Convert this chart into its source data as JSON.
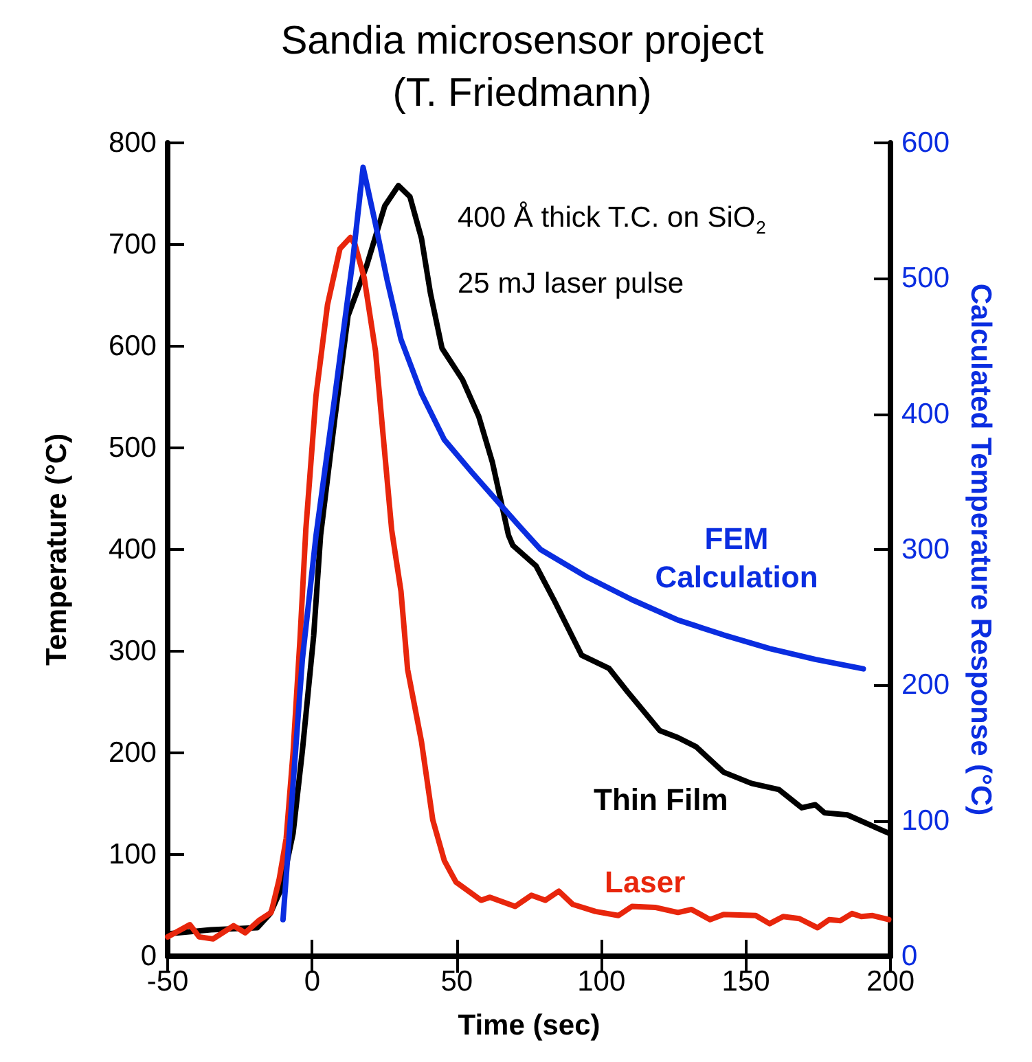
{
  "chart_data": {
    "type": "line",
    "title": "Sandia microsensor project\n(T. Friedmann)",
    "xlabel": "Time (sec)",
    "ylabel": "Temperature (°C)",
    "y2label": "Calculated Temperature Response (°C)",
    "annotations": [
      "400 Å thick T.C. on SiO$_{2}$",
      "25 mJ laser pulse"
    ],
    "xlim": [
      -50,
      200
    ],
    "xticks": [
      -50,
      0,
      50,
      100,
      150,
      200
    ],
    "ylim": [
      0,
      800
    ],
    "yticks": [
      0,
      100,
      200,
      300,
      400,
      500,
      600,
      700,
      800
    ],
    "y2lim": [
      0,
      600
    ],
    "y2ticks": [
      0,
      100,
      200,
      300,
      400,
      500,
      600
    ],
    "grid": false,
    "legend": false,
    "marker": "none",
    "line_style": "solid",
    "series": [
      {
        "name": "Thin Film",
        "color": "#000000",
        "x": [
          -50,
          -35,
          -19,
          -14.5,
          -10.6,
          -6.6,
          -3.4,
          0.5,
          2.9,
          7.7,
          12.4,
          18.8,
          25.1,
          29.8,
          33.8,
          37.8,
          40.9,
          44.9,
          52,
          57.6,
          62.3,
          67.9,
          69.4,
          77.4,
          83.7,
          93.2,
          102.7,
          109.1,
          120.2,
          126.5,
          132.8,
          142.3,
          151.9,
          161.4,
          169.3,
          174,
          177.2,
          185.1,
          199.4
        ],
        "values": [
          22,
          26,
          28,
          42,
          67,
          121,
          202,
          315,
          414,
          526,
          630,
          679,
          738,
          758,
          747,
          706,
          652,
          598,
          567,
          531,
          486,
          414,
          404,
          384,
          350,
          296,
          283,
          260,
          222,
          215,
          206,
          181,
          170,
          164,
          146,
          149,
          141,
          139,
          121
        ]
      },
      {
        "name": "Laser",
        "color": "#e8260c",
        "x": [
          -50,
          -42.3,
          -39.1,
          -34.3,
          -27.2,
          -23.2,
          -18.5,
          -14.2,
          -11.4,
          -9,
          -6.6,
          -4.2,
          -2.2,
          1.3,
          5.3,
          9.6,
          13.2,
          14.8,
          18,
          21.9,
          27.5,
          30.7,
          33,
          37.8,
          41.7,
          45.7,
          49.7,
          58.4,
          61.5,
          70.2,
          75.8,
          80.6,
          85.3,
          90.1,
          98,
          105.9,
          110.6,
          118.6,
          126.5,
          131.2,
          137.6,
          142.3,
          153.4,
          158.2,
          162.9,
          168.5,
          174.8,
          178.8,
          182.7,
          186.7,
          189.9,
          193.8,
          199.4
        ],
        "values": [
          19,
          31,
          19,
          17,
          30,
          23,
          35,
          43,
          76,
          116,
          201,
          313,
          420,
          551,
          641,
          696,
          707,
          700,
          667,
          595,
          419,
          359,
          282,
          211,
          134,
          94,
          73,
          55,
          58,
          49,
          60,
          55,
          64,
          51,
          44,
          40,
          49,
          48,
          43,
          46,
          36,
          41,
          40,
          32,
          39,
          37,
          28,
          36,
          35,
          42,
          39,
          40,
          36
        ]
      },
      {
        "name": "FEM\nCalculation",
        "color": "#0a2de0",
        "axis": "y2",
        "x": [
          -10.1,
          -3.4,
          1.3,
          7.7,
          14,
          17.6,
          21.9,
          25.9,
          30.7,
          37.8,
          45.7,
          55.2,
          64.7,
          72.6,
          79,
          94.8,
          110.6,
          126.5,
          142.3,
          158.2,
          174,
          190.6
        ],
        "values": [
          27,
          219,
          310,
          411,
          513,
          582,
          540,
          499,
          455,
          415,
          381,
          357,
          334,
          315,
          300,
          280,
          263,
          248,
          237,
          227,
          219,
          212
        ]
      }
    ]
  }
}
